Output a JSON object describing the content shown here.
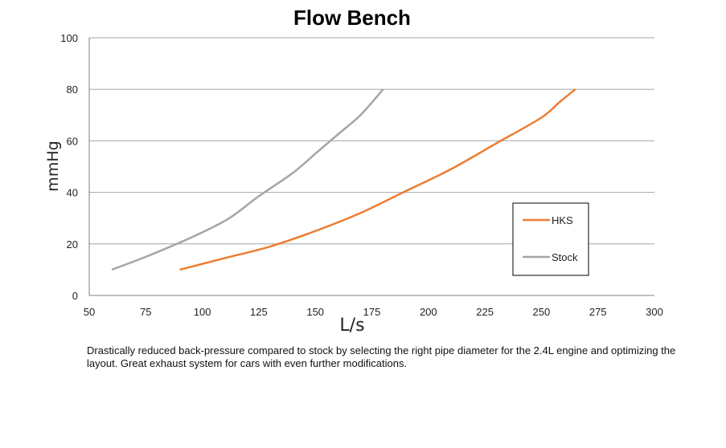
{
  "chart_data": {
    "type": "line",
    "title": "Flow Bench",
    "xlabel": "L/s",
    "ylabel": "mmHg",
    "xlim": [
      50,
      300
    ],
    "ylim": [
      0,
      100
    ],
    "x_ticks": [
      50,
      75,
      100,
      125,
      150,
      175,
      200,
      225,
      250,
      275,
      300
    ],
    "y_ticks": [
      0,
      20,
      40,
      60,
      80,
      100
    ],
    "grid": "horizontal",
    "legend_position": "right",
    "series": [
      {
        "name": "HKS",
        "color": "#ED7D31",
        "points": [
          [
            90,
            10
          ],
          [
            110,
            14.5
          ],
          [
            130,
            19
          ],
          [
            150,
            25
          ],
          [
            170,
            32
          ],
          [
            190,
            40.5
          ],
          [
            210,
            49
          ],
          [
            230,
            59
          ],
          [
            250,
            69
          ],
          [
            258,
            75
          ],
          [
            265,
            80
          ]
        ]
      },
      {
        "name": "Stock",
        "color": "#A5A5A5",
        "points": [
          [
            60,
            10
          ],
          [
            75,
            15
          ],
          [
            90,
            20.5
          ],
          [
            100,
            24.5
          ],
          [
            112,
            30
          ],
          [
            125,
            38.5
          ],
          [
            140,
            47.5
          ],
          [
            150,
            55
          ],
          [
            160,
            62.5
          ],
          [
            170,
            70
          ],
          [
            180,
            80
          ]
        ]
      }
    ]
  },
  "caption": "Drastically reduced back-pressure compared to stock by selecting the right pipe diameter for the 2.4L engine and optimizing the layout. Great exhaust system for cars with even further modifications."
}
